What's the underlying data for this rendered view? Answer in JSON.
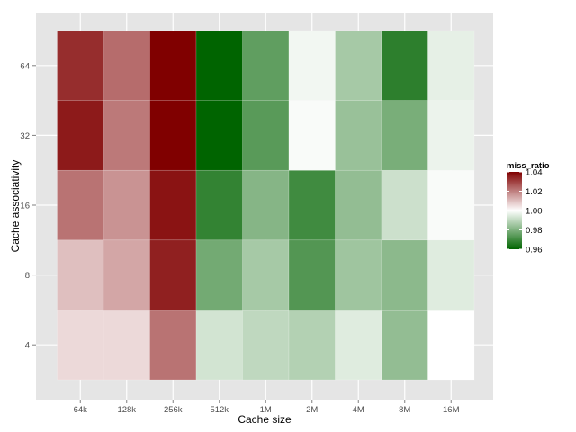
{
  "chart_data": {
    "type": "heatmap",
    "xlabel": "Cache size",
    "ylabel": "Cache associativity",
    "x_categories": [
      "64k",
      "128k",
      "256k",
      "512k",
      "1M",
      "2M",
      "4M",
      "8M",
      "16M"
    ],
    "y_categories": [
      "4",
      "8",
      "16",
      "32",
      "64"
    ],
    "fill_variable": "miss_ratio",
    "fill_range": [
      0.96,
      1.04
    ],
    "colors": {
      "low": "#006400",
      "mid": "#ffffff",
      "high": "#800000"
    },
    "legend": {
      "title": "miss_ratio",
      "breaks": [
        "1.04",
        "1.02",
        "1.00",
        "0.98",
        "0.96"
      ],
      "break_values": [
        1.04,
        1.02,
        1.0,
        0.98,
        0.96
      ],
      "placement": "right"
    },
    "grid": true,
    "values": {
      "64": [
        1.033,
        1.023,
        1.04,
        0.96,
        0.975,
        0.998,
        0.986,
        0.967,
        0.996
      ],
      "32": [
        1.036,
        1.021,
        1.04,
        0.96,
        0.974,
        0.999,
        0.984,
        0.979,
        0.997
      ],
      "16": [
        1.022,
        1.017,
        1.037,
        0.968,
        0.981,
        0.97,
        0.983,
        0.992,
        0.999
      ],
      "8": [
        1.01,
        1.014,
        1.035,
        0.978,
        0.986,
        0.973,
        0.985,
        0.982,
        0.995
      ],
      "4": [
        1.006,
        1.006,
        1.022,
        0.993,
        0.99,
        0.988,
        0.995,
        0.983,
        1.0
      ]
    }
  }
}
